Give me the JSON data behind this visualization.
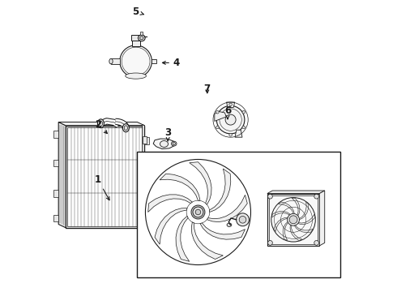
{
  "bg_color": "#ffffff",
  "line_color": "#1a1a1a",
  "dpi": 100,
  "figsize": [
    4.9,
    3.6
  ],
  "font_size": 8.5,
  "label_positions": {
    "1": {
      "label": [
        0.155,
        0.385
      ],
      "point": [
        0.2,
        0.305
      ]
    },
    "2": {
      "label": [
        0.155,
        0.575
      ],
      "point": [
        0.195,
        0.535
      ]
    },
    "3": {
      "label": [
        0.395,
        0.545
      ],
      "point": [
        0.395,
        0.515
      ]
    },
    "4": {
      "label": [
        0.425,
        0.785
      ],
      "point": [
        0.365,
        0.785
      ]
    },
    "5": {
      "label": [
        0.285,
        0.96
      ],
      "point": [
        0.315,
        0.95
      ]
    },
    "6": {
      "label": [
        0.6,
        0.62
      ],
      "point": [
        0.6,
        0.59
      ]
    },
    "7": {
      "label": [
        0.53,
        0.695
      ],
      "point": [
        0.53,
        0.67
      ]
    }
  }
}
